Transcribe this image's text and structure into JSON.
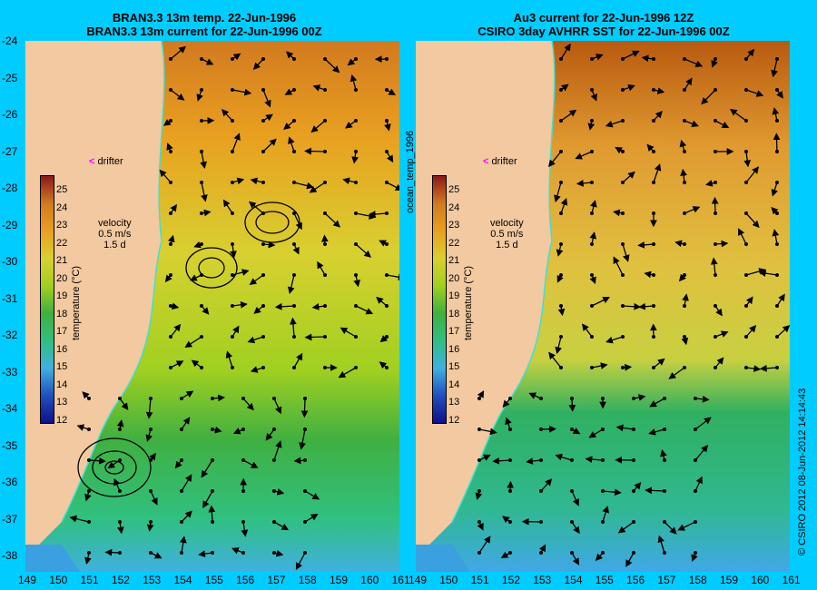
{
  "left_panel": {
    "title_line1": "BRAN3.3 13m temp. 22-Jun-1996",
    "title_line2": "BRAN3.3 13m current for 22-Jun-1996 00Z"
  },
  "right_panel": {
    "title_line1": "Au3 current for 22-Jun-1996 12Z",
    "title_line2": "CSIRO 3day AVHRR SST for 22-Jun-1996 00Z"
  },
  "y_axis_ticks": [
    "-24",
    "-25",
    "-26",
    "-27",
    "-28",
    "-29",
    "-30",
    "-31",
    "-32",
    "-33",
    "-34",
    "-35",
    "-36",
    "-37",
    "-38"
  ],
  "x_axis_ticks_left": [
    "149",
    "150",
    "151",
    "152",
    "153",
    "154",
    "155",
    "156",
    "157",
    "158",
    "159",
    "160",
    "161"
  ],
  "x_axis_ticks_right": [
    "149",
    "150",
    "151",
    "152",
    "153",
    "154",
    "155",
    "156",
    "157",
    "158",
    "159",
    "160",
    "161"
  ],
  "drifter_label": "drifter",
  "velocity_label": "velocity",
  "velocity_scale": "0.5 m/s",
  "velocity_days": "1.5 d",
  "colorbar": {
    "label": "temperature (°C)",
    "ticks": [
      "25",
      "24",
      "23",
      "22",
      "21",
      "20",
      "19",
      "18",
      "17",
      "16",
      "15",
      "14",
      "13",
      "12"
    ]
  },
  "middle_vertical_label": "ocean_temp_1996",
  "copyright": "© CSIRO 2012  08-Jun-2012 14:14:43",
  "colors": {
    "background": "#00ccff",
    "land": "#f2c9a0",
    "drifter": "#ff00ff",
    "coast": "#40e0d0"
  }
}
